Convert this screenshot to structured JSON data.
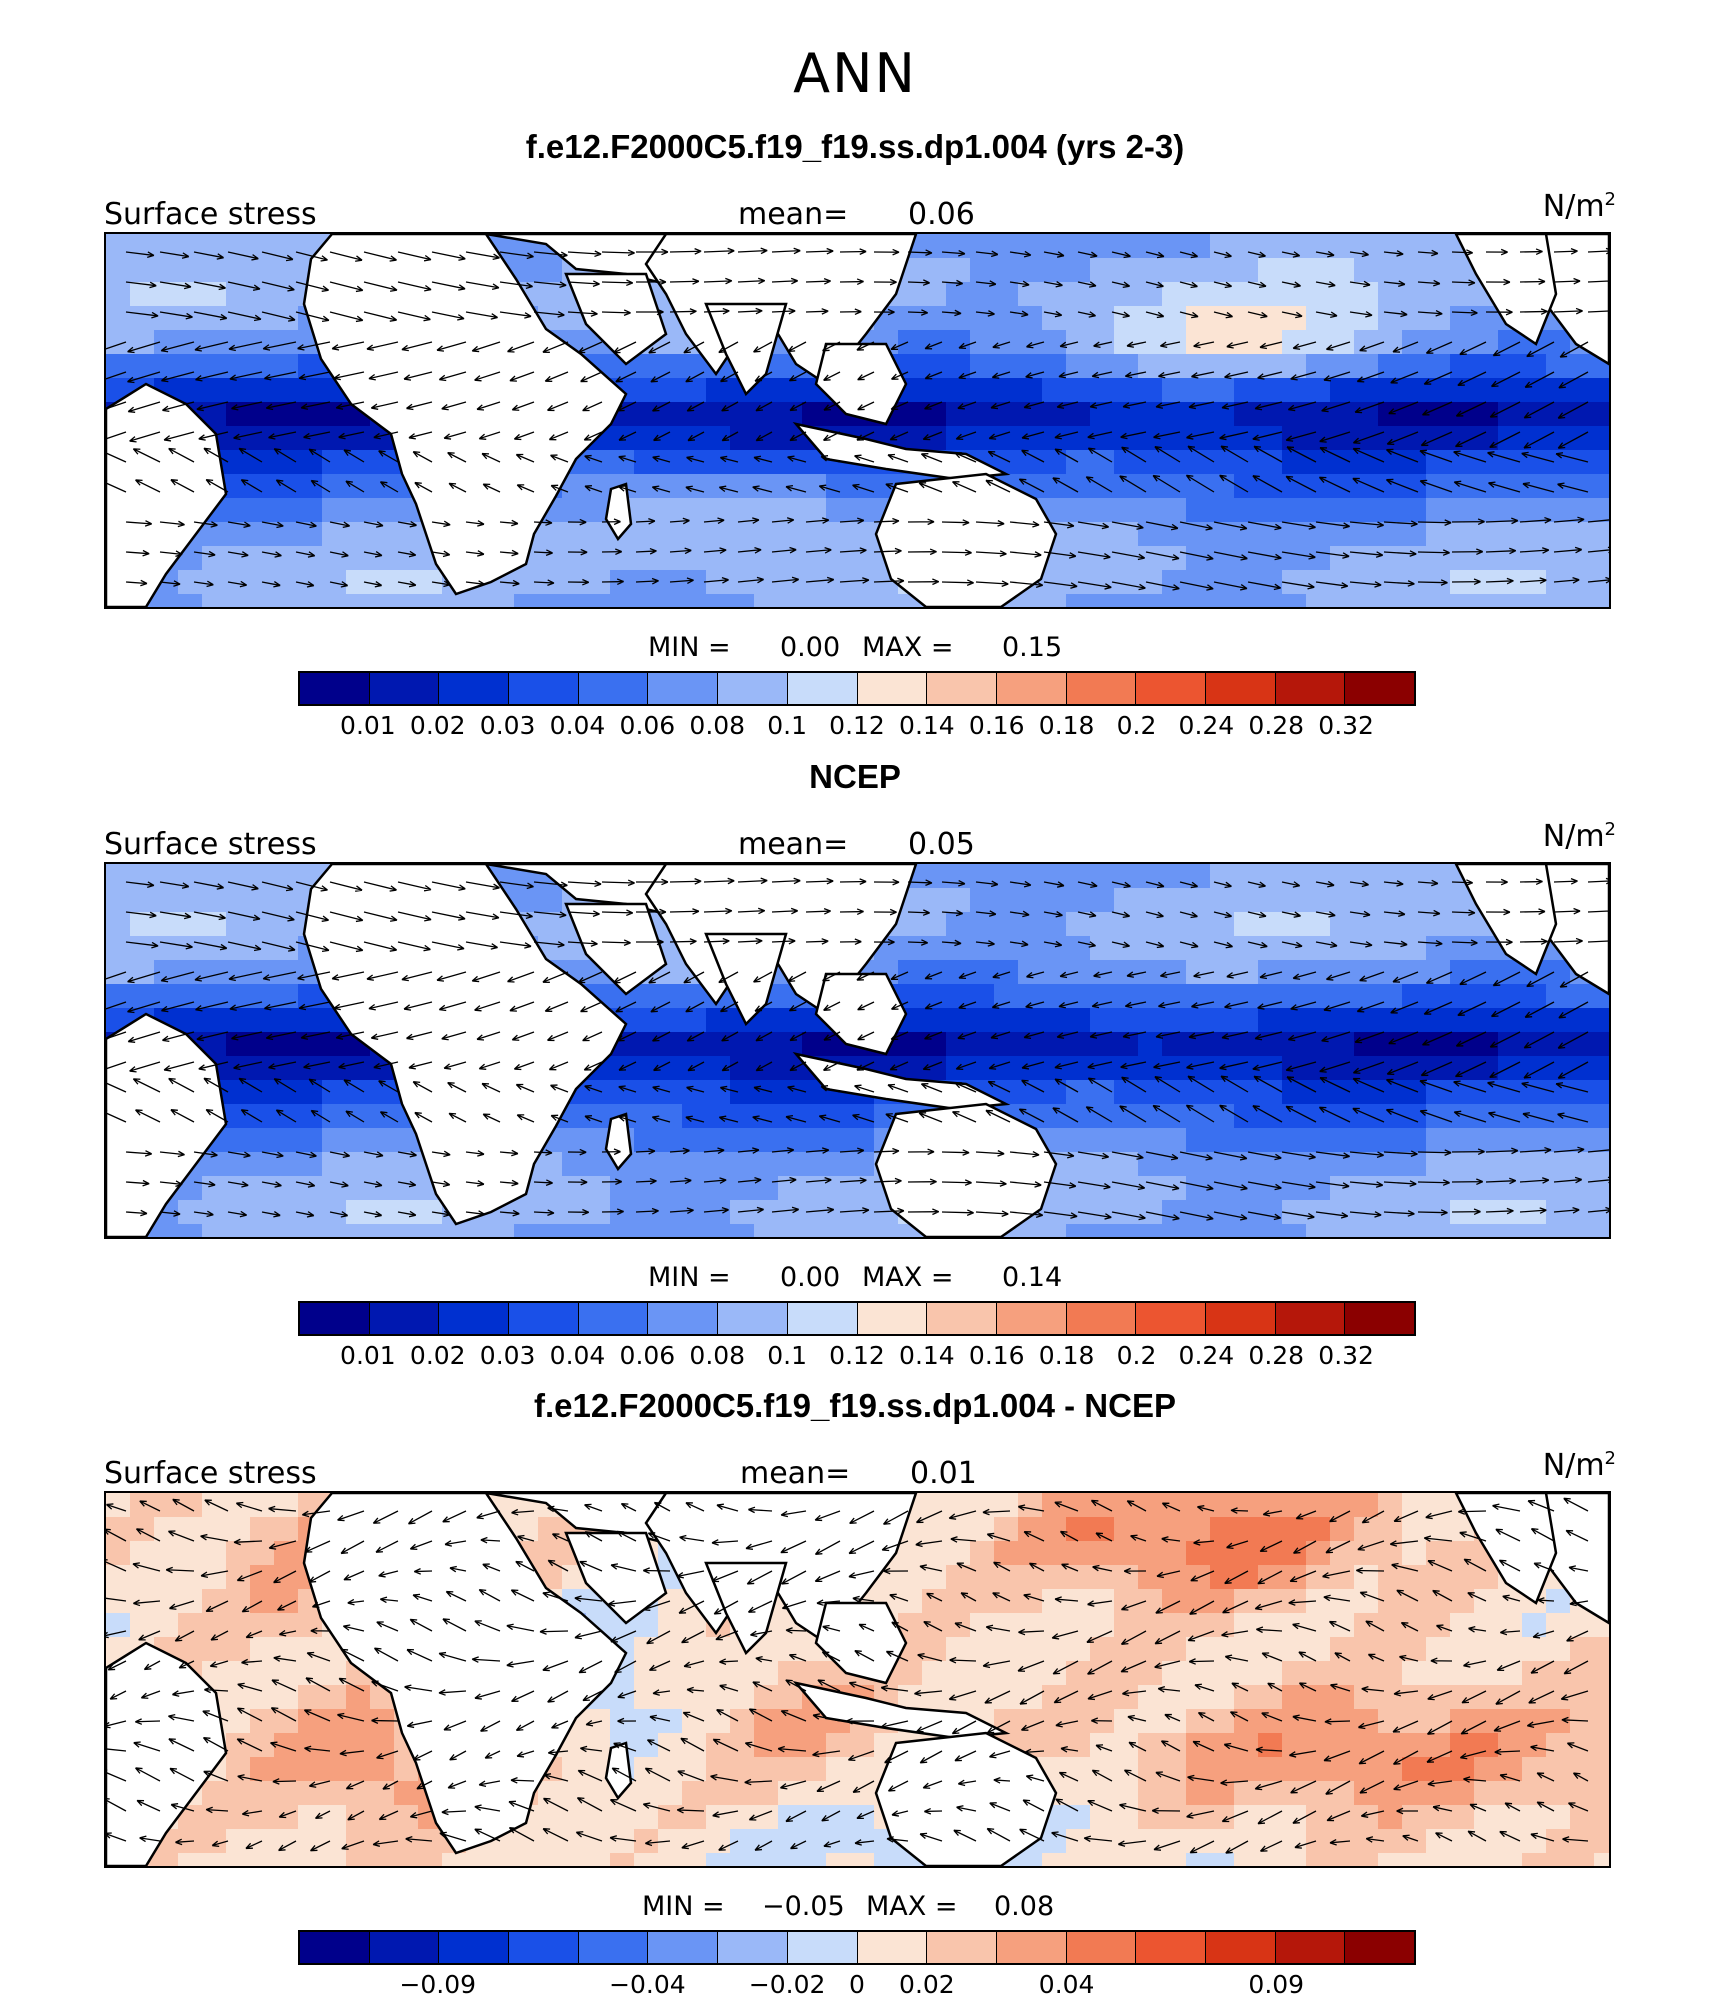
{
  "figure": {
    "title": "ANN"
  },
  "panels": [
    {
      "title": "f.e12.F2000C5.f19_f19.ss.dp1.004 (yrs 2-3)",
      "variable": "Surface stress",
      "mean_label": "mean=",
      "mean_value": "0.06",
      "units": "N/m",
      "units_exp": "2",
      "min_label": "MIN =",
      "min_value": "0.00",
      "max_label": "MAX =",
      "max_value": "0.15",
      "palette": "abs",
      "colorbar_ticks": [
        "0.01",
        "0.02",
        "0.03",
        "0.04",
        "0.06",
        "0.08",
        "0.1",
        "0.12",
        "0.14",
        "0.16",
        "0.18",
        "0.2",
        "0.24",
        "0.28",
        "0.32"
      ]
    },
    {
      "title": "NCEP",
      "variable": "Surface stress",
      "mean_label": "mean=",
      "mean_value": "0.05",
      "units": "N/m",
      "units_exp": "2",
      "min_label": "MIN =",
      "min_value": "0.00",
      "max_label": "MAX =",
      "max_value": "0.14",
      "palette": "abs",
      "colorbar_ticks": [
        "0.01",
        "0.02",
        "0.03",
        "0.04",
        "0.06",
        "0.08",
        "0.1",
        "0.12",
        "0.14",
        "0.16",
        "0.18",
        "0.2",
        "0.24",
        "0.28",
        "0.32"
      ]
    },
    {
      "title": "f.e12.F2000C5.f19_f19.ss.dp1.004 - NCEP",
      "variable": "Surface stress",
      "mean_label": "mean=",
      "mean_value": "0.01",
      "units": "N/m",
      "units_exp": "2",
      "min_label": "MIN =",
      "min_value": "−0.05",
      "max_label": "MAX =",
      "max_value": "0.08",
      "palette": "diff",
      "colorbar_ticks": [
        "−0.09",
        "−0.04",
        "−0.02",
        "0",
        "0.02",
        "0.04",
        "0.09"
      ]
    }
  ],
  "colorbar_colors": [
    "#00008b",
    "#0018b0",
    "#0030d0",
    "#1a50e8",
    "#3a70f0",
    "#6a95f5",
    "#9ab8f8",
    "#c8dcfa",
    "#fbe4d4",
    "#f9c5ac",
    "#f6a07e",
    "#f27a53",
    "#ec5530",
    "#d83415",
    "#b5170a",
    "#8b0000"
  ]
}
